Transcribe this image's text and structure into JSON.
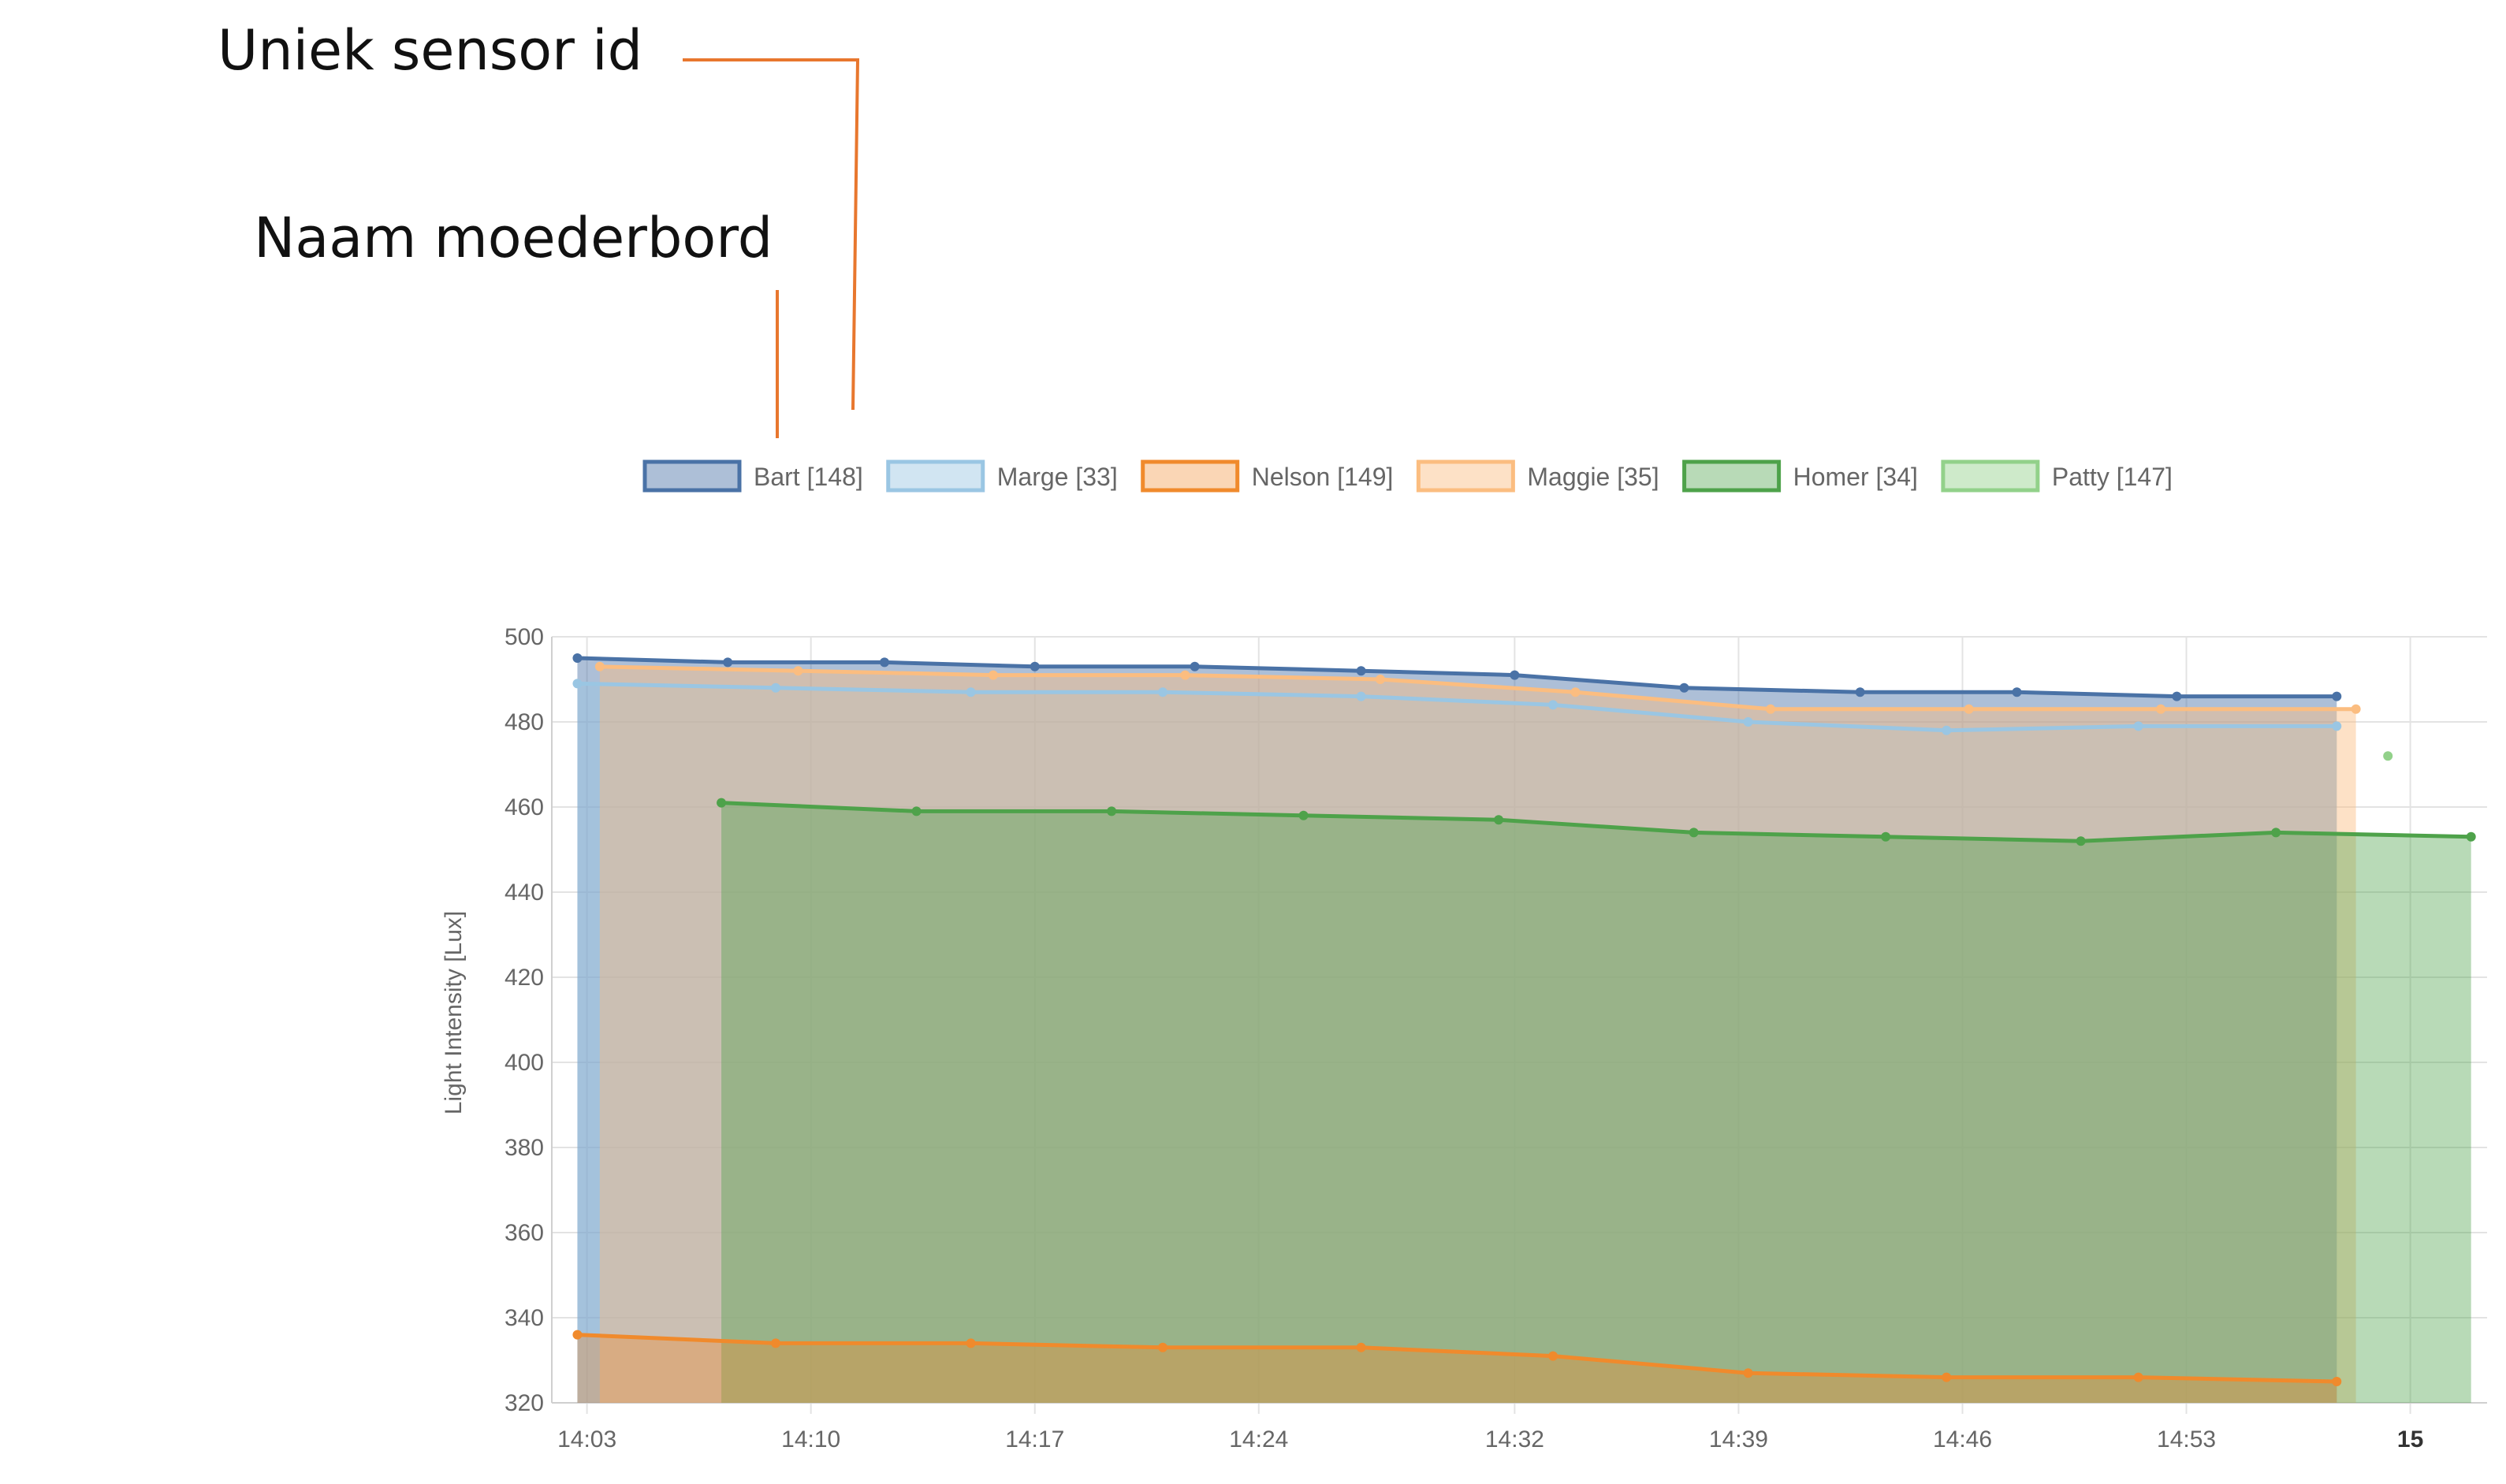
{
  "annotations": {
    "sensor_id": "Uniek sensor id",
    "board_name": "Naam moederbord",
    "line_color": "#e8772e"
  },
  "chart_data": {
    "type": "area",
    "ylabel": "Light Intensity [Lux]",
    "xlabel": "",
    "ylim": [
      320,
      500
    ],
    "yticks": [
      320,
      340,
      360,
      380,
      400,
      420,
      440,
      460,
      480,
      500
    ],
    "x_axis_unit": "minutes past 14:00",
    "xlim": [
      1.9,
      62.4
    ],
    "xticks": [
      {
        "t": 3,
        "label": "14:03",
        "bold": false
      },
      {
        "t": 10,
        "label": "14:10",
        "bold": false
      },
      {
        "t": 17,
        "label": "14:17",
        "bold": false
      },
      {
        "t": 24,
        "label": "14:24",
        "bold": false
      },
      {
        "t": 32,
        "label": "14:32",
        "bold": false
      },
      {
        "t": 39,
        "label": "14:39",
        "bold": false
      },
      {
        "t": 46,
        "label": "14:46",
        "bold": false
      },
      {
        "t": 53,
        "label": "14:53",
        "bold": false
      },
      {
        "t": 60,
        "label": "15",
        "bold": true
      }
    ],
    "grid": true,
    "legend_position": "top",
    "series": [
      {
        "name": "Bart [148]",
        "color": "#4a72a6",
        "fill": "rgba(74,114,166,0.45)",
        "points": [
          [
            2.7,
            495
          ],
          [
            7.4,
            494
          ],
          [
            12.3,
            494
          ],
          [
            17.0,
            493
          ],
          [
            22.0,
            493
          ],
          [
            27.2,
            492
          ],
          [
            32.0,
            491
          ],
          [
            37.3,
            488
          ],
          [
            42.8,
            487
          ],
          [
            47.7,
            487
          ],
          [
            52.7,
            486
          ],
          [
            57.7,
            486
          ]
        ]
      },
      {
        "name": "Marge [33]",
        "color": "#9ac6e3",
        "fill": "rgba(154,198,227,0.45)",
        "points": [
          [
            2.7,
            489
          ],
          [
            8.9,
            488
          ],
          [
            15.0,
            487
          ],
          [
            21.0,
            487
          ],
          [
            27.2,
            486
          ],
          [
            33.2,
            484
          ],
          [
            39.3,
            480
          ],
          [
            45.5,
            478
          ],
          [
            51.5,
            479
          ],
          [
            57.7,
            479
          ]
        ]
      },
      {
        "name": "Nelson [149]",
        "color": "#f08a2c",
        "fill": "rgba(240,138,44,0.35)",
        "points": [
          [
            2.7,
            336
          ],
          [
            8.9,
            334
          ],
          [
            15.0,
            334
          ],
          [
            21.0,
            333
          ],
          [
            27.2,
            333
          ],
          [
            33.2,
            331
          ],
          [
            39.3,
            327
          ],
          [
            45.5,
            326
          ],
          [
            51.5,
            326
          ],
          [
            57.7,
            325
          ]
        ]
      },
      {
        "name": "Maggie [35]",
        "color": "#fbbd80",
        "fill": "rgba(251,189,128,0.45)",
        "points": [
          [
            3.4,
            493
          ],
          [
            9.6,
            492
          ],
          [
            15.7,
            491
          ],
          [
            21.7,
            491
          ],
          [
            27.8,
            490
          ],
          [
            33.9,
            487
          ],
          [
            40.0,
            483
          ],
          [
            46.2,
            483
          ],
          [
            52.2,
            483
          ],
          [
            58.3,
            483
          ]
        ]
      },
      {
        "name": "Homer [34]",
        "color": "#4ea24a",
        "fill": "rgba(78,162,74,0.40)",
        "points": [
          [
            7.2,
            461
          ],
          [
            13.3,
            459
          ],
          [
            19.4,
            459
          ],
          [
            25.4,
            458
          ],
          [
            31.5,
            457
          ],
          [
            37.6,
            454
          ],
          [
            43.6,
            453
          ],
          [
            49.7,
            452
          ],
          [
            55.8,
            454
          ],
          [
            61.9,
            453
          ]
        ]
      },
      {
        "name": "Patty [147]",
        "color": "#92d18a",
        "fill": "rgba(146,209,138,0.45)",
        "points": [
          [
            59.3,
            472
          ]
        ]
      }
    ]
  }
}
